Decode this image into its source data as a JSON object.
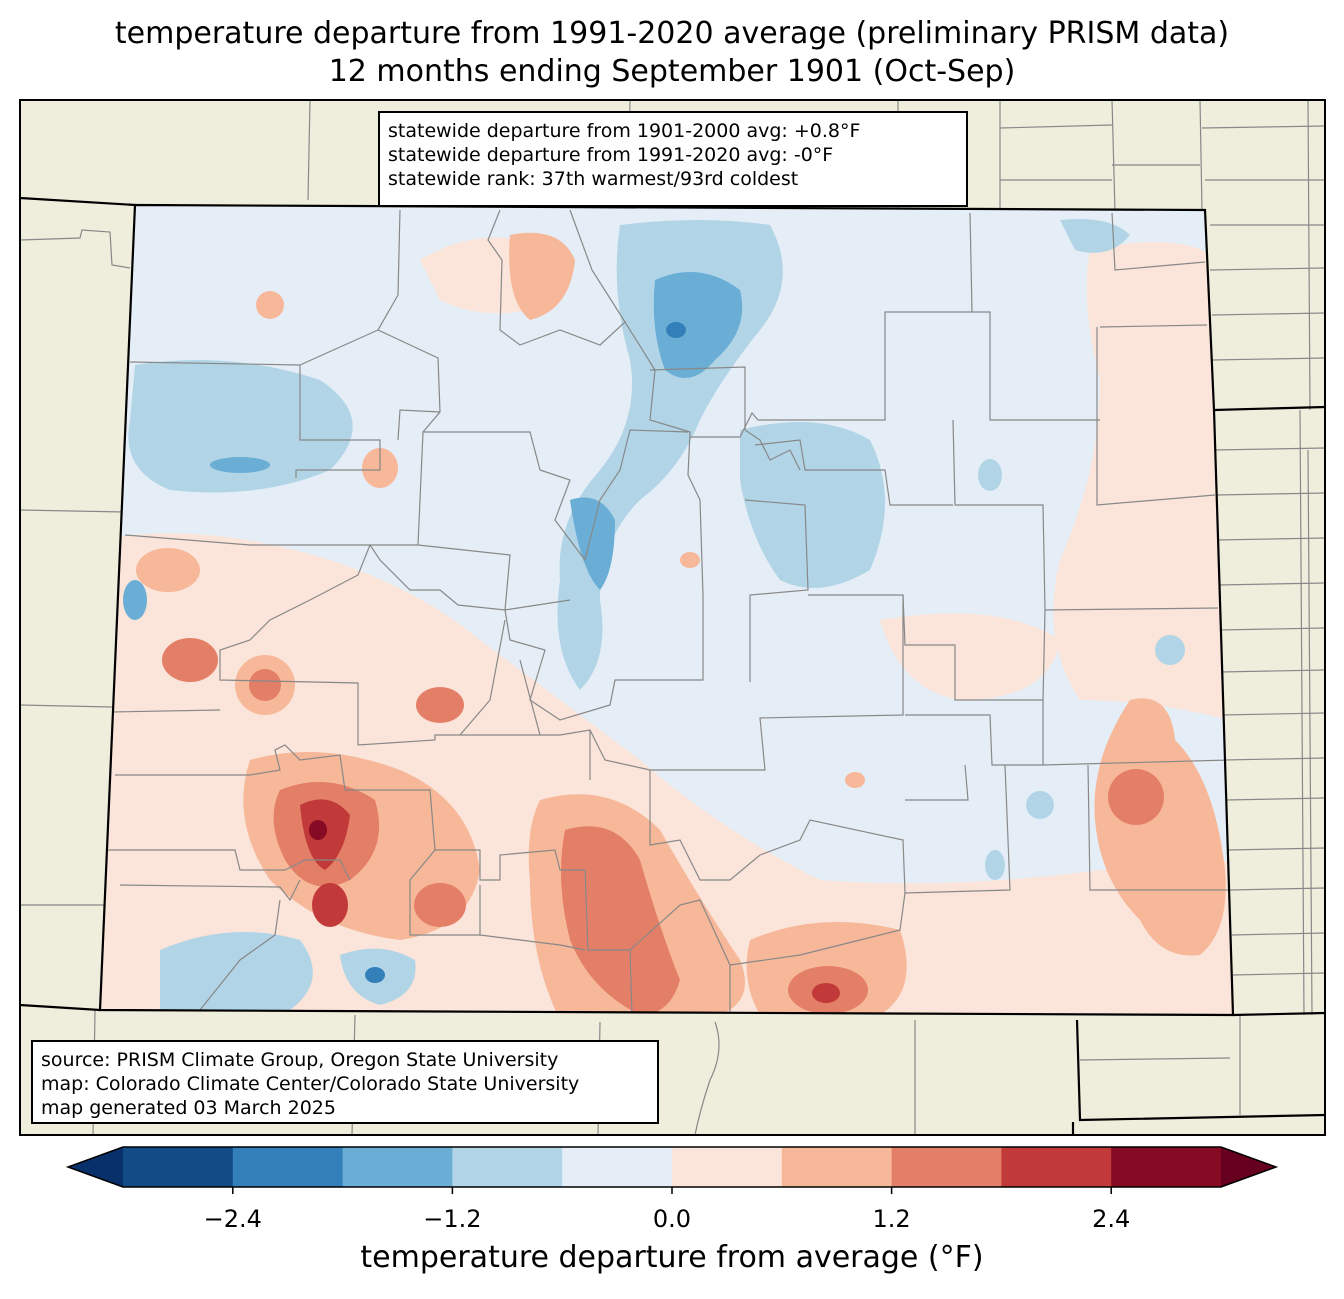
{
  "title": {
    "line1": "temperature departure from 1991-2020 average (preliminary PRISM data)",
    "line2": "12 months ending September 1901 (Oct-Sep)"
  },
  "stats": {
    "line1": "statewide departure from 1901-2000 avg: +0.8°F",
    "line2": "statewide departure from 1991-2020 avg: -0°F",
    "line3": "statewide rank: 37th warmest/93rd coldest"
  },
  "source": {
    "line1": "source: PRISM Climate Group, Oregon State University",
    "line2": "map: Colorado Climate Center/Colorado State University",
    "line3": "map generated 03 March 2025"
  },
  "colorbar": {
    "label": "temperature departure from average (°F)",
    "ticks": [
      "−2.4",
      "−1.2",
      "0.0",
      "1.2",
      "2.4"
    ],
    "tick_values": [
      -2.4,
      -1.2,
      0.0,
      1.2,
      2.4
    ],
    "levels": [
      -3.0,
      -2.4,
      -1.8,
      -1.2,
      -0.6,
      0.0,
      0.6,
      1.2,
      1.8,
      2.4,
      3.0
    ],
    "colors": [
      "#08306b",
      "#134b87",
      "#327fba",
      "#6aaed6",
      "#b1d5e7",
      "#e5eef6",
      "#fbe4d9",
      "#f7b799",
      "#e47f67",
      "#c13a39",
      "#870a24",
      "#67001f"
    ]
  },
  "colors": {
    "land": "#efeedd",
    "county_lines": "#888888",
    "state_lines": "#000000"
  }
}
